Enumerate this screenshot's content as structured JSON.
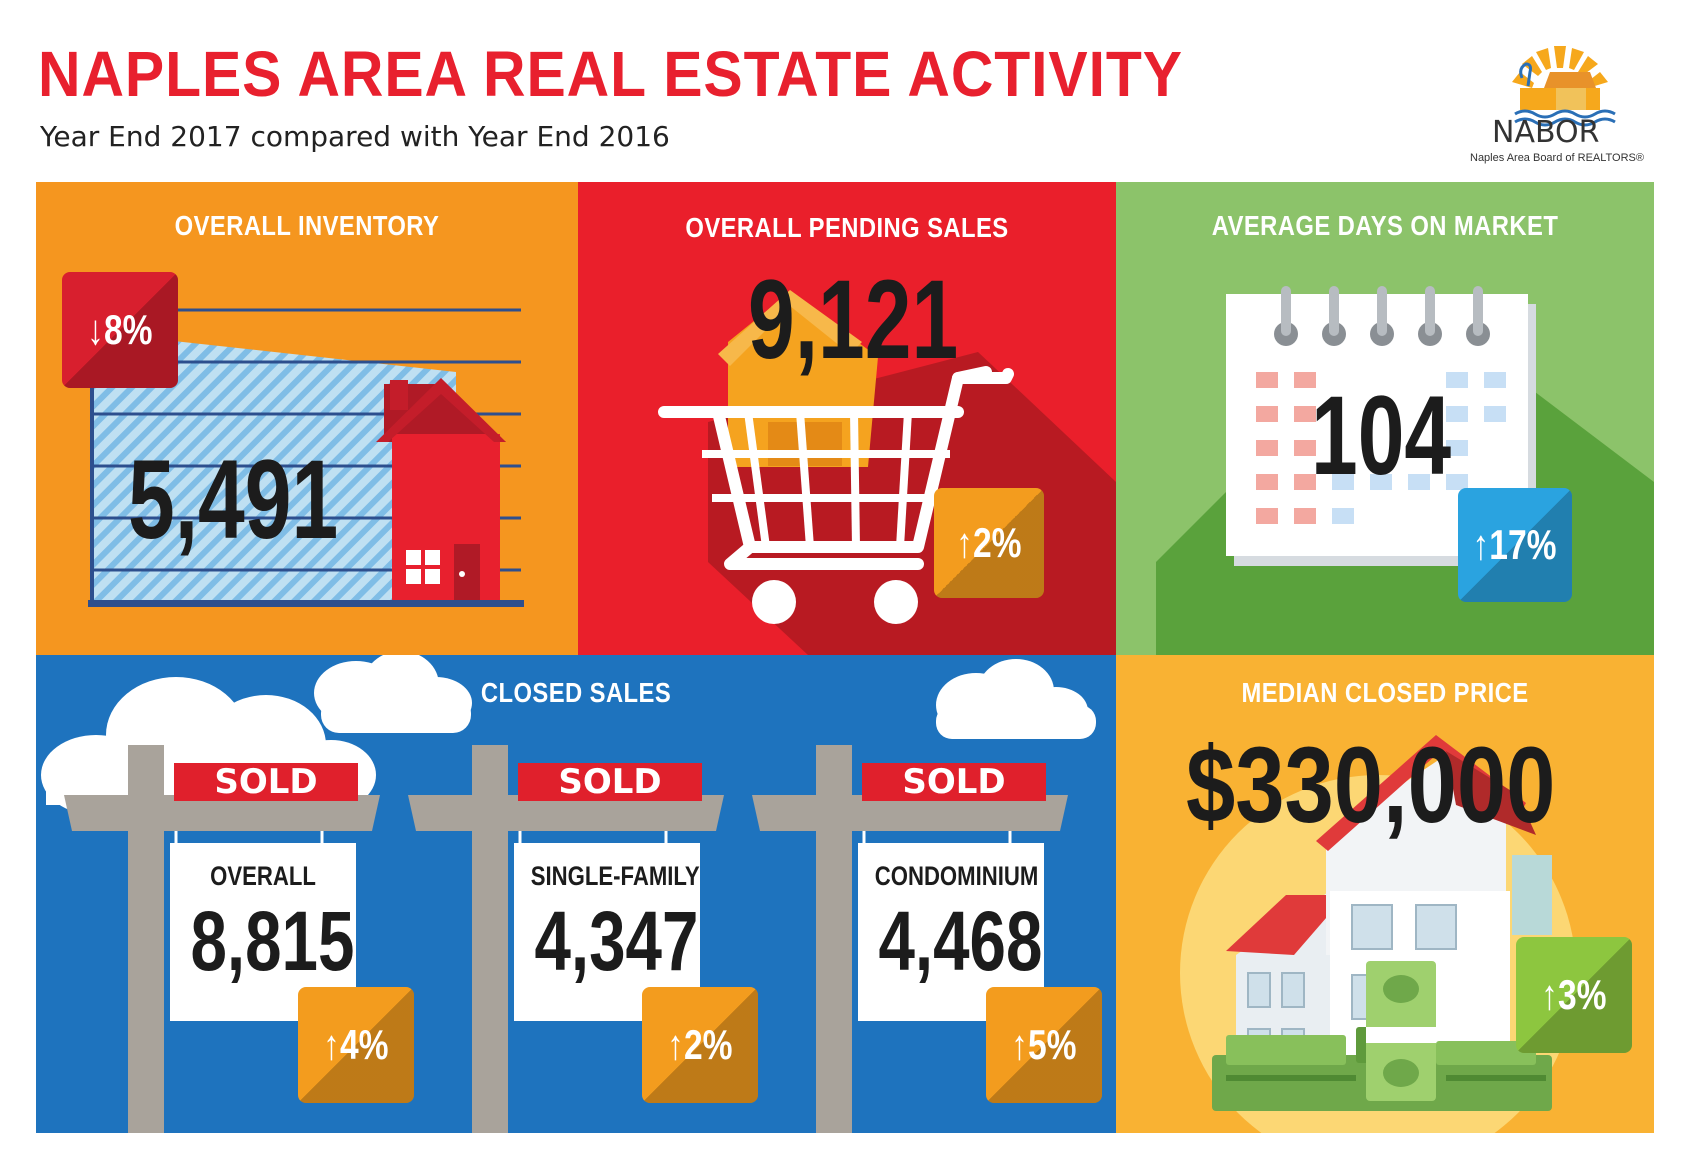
{
  "header": {
    "title": "NAPLES AREA REAL ESTATE ACTIVITY",
    "subtitle": "Year End 2017 compared with Year End 2016"
  },
  "logo": {
    "name": "NABOR",
    "tagline": "Naples Area Board of REALTORS®",
    "icon": "sun-house-heron-logo"
  },
  "inventory": {
    "title": "OVERALL INVENTORY",
    "value": "5,491",
    "change": "8%",
    "direction": "down",
    "arrow": "↓",
    "icon": "house-chart-icon"
  },
  "pending": {
    "title": "OVERALL PENDING SALES",
    "value": "9,121",
    "change": "2%",
    "direction": "up",
    "arrow": "↑",
    "icon": "shopping-cart-house-icon"
  },
  "days": {
    "title": "AVERAGE DAYS ON MARKET",
    "value": "104",
    "change": "17%",
    "direction": "up",
    "arrow": "↑",
    "icon": "calendar-icon"
  },
  "closed": {
    "title": "CLOSED SALES",
    "sold_label": "SOLD",
    "items": [
      {
        "label": "OVERALL",
        "value": "8,815",
        "change": "4%",
        "arrow": "↑"
      },
      {
        "label": "SINGLE-FAMILY",
        "value": "4,347",
        "change": "2%",
        "arrow": "↑"
      },
      {
        "label": "CONDOMINIUM",
        "value": "4,468",
        "change": "5%",
        "arrow": "↑"
      }
    ]
  },
  "median": {
    "title": "MEDIAN CLOSED PRICE",
    "value": "$330,000",
    "change": "3%",
    "direction": "up",
    "arrow": "↑",
    "icon": "house-money-icon"
  },
  "colors": {
    "brand_red": "#e8202e",
    "orange": "#f5961f",
    "red": "#ea1f2b",
    "green": "#8cc36a",
    "blue": "#1e73be",
    "amber": "#f9b233",
    "badge_red": "#d81f2e",
    "badge_orange": "#f39c1e",
    "badge_blue": "#2aa3e0",
    "badge_lime": "#8dc63f"
  }
}
